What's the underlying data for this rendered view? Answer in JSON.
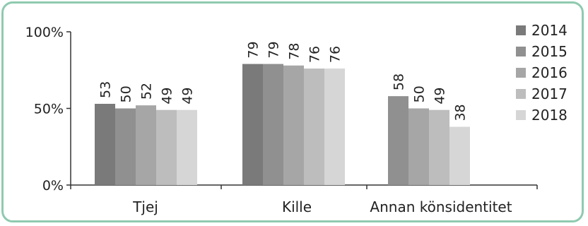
{
  "chart_data": {
    "type": "bar",
    "categories": [
      "Tjej",
      "Kille",
      "Annan könsidentitet"
    ],
    "series": [
      {
        "name": "2014",
        "values": [
          53,
          79,
          null
        ],
        "color": "#7a7a7a"
      },
      {
        "name": "2015",
        "values": [
          50,
          79,
          58
        ],
        "color": "#909090"
      },
      {
        "name": "2016",
        "values": [
          52,
          78,
          50
        ],
        "color": "#a6a6a6"
      },
      {
        "name": "2017",
        "values": [
          49,
          76,
          49
        ],
        "color": "#bdbdbd"
      },
      {
        "name": "2018",
        "values": [
          49,
          76,
          38
        ],
        "color": "#d6d6d6"
      }
    ],
    "yticks": [
      "0%",
      "50%",
      "100%"
    ],
    "ylim": [
      0,
      100
    ],
    "legend_position": "right",
    "grid": false
  }
}
